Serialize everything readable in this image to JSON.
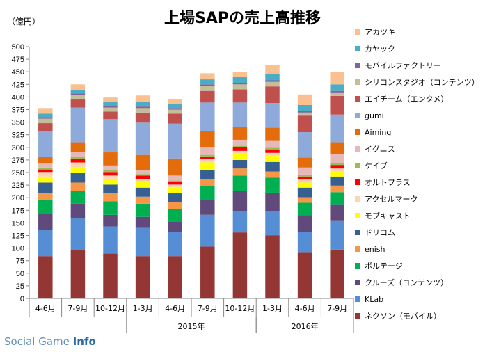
{
  "chart_data": {
    "type": "bar",
    "stacked": true,
    "title": "上場SAPの売上高推移",
    "unit_label": "（億円）",
    "ylim": [
      0,
      500
    ],
    "y_ticks": [
      0,
      25,
      50,
      75,
      100,
      125,
      150,
      175,
      200,
      225,
      250,
      275,
      300,
      325,
      350,
      375,
      400,
      425,
      450,
      475,
      500
    ],
    "categories": [
      "4-6月",
      "7-9月",
      "10-12月",
      "1-3月",
      "4-6月",
      "7-9月",
      "10-12月",
      "1-3月",
      "4-6月",
      "7-9月"
    ],
    "year_groups": [
      {
        "label": "2015年",
        "start": 3,
        "end": 6
      },
      {
        "label": "2016年",
        "start": 7,
        "end": 9
      }
    ],
    "grid": false,
    "legend_position": "right",
    "series": [
      {
        "name": "ネクソン（モバイル）",
        "color": "#943634",
        "values": [
          84,
          96,
          89,
          84,
          84,
          103,
          131,
          125,
          92,
          97
        ]
      },
      {
        "name": "KLab",
        "color": "#558ed5",
        "values": [
          52,
          63,
          54,
          56,
          48,
          63,
          43,
          48,
          40,
          58
        ]
      },
      {
        "name": "クルーズ（コンテンツ）",
        "color": "#604a7b",
        "values": [
          32,
          29,
          23,
          22,
          21,
          30,
          40,
          37,
          33,
          32
        ]
      },
      {
        "name": "ボルテージ",
        "color": "#00b050",
        "values": [
          27,
          26,
          27,
          26,
          25,
          27,
          30,
          30,
          25,
          24
        ]
      },
      {
        "name": "enish",
        "color": "#f79646",
        "values": [
          14,
          16,
          16,
          14,
          14,
          14,
          14,
          12,
          11,
          13
        ]
      },
      {
        "name": "ドリコム",
        "color": "#376092",
        "values": [
          21,
          19,
          17,
          18,
          17,
          18,
          17,
          19,
          19,
          18
        ]
      },
      {
        "name": "モブキャスト",
        "color": "#ffff00",
        "values": [
          12,
          12,
          11,
          11,
          11,
          15,
          11,
          12,
          10,
          10
        ]
      },
      {
        "name": "アクセルマーク",
        "color": "#fcd5b5",
        "values": [
          9,
          9,
          7,
          6,
          6,
          7,
          7,
          6,
          6,
          6
        ]
      },
      {
        "name": "オルトプラス",
        "color": "#ff0000",
        "values": [
          5,
          7,
          7,
          7,
          5,
          5,
          7,
          7,
          6,
          7
        ]
      },
      {
        "name": "ケイブ",
        "color": "#9bbb59",
        "values": [
          4,
          4,
          4,
          3,
          3,
          3,
          3,
          3,
          4,
          4
        ]
      },
      {
        "name": "イグニス",
        "color": "#e6b9b8",
        "values": [
          8,
          10,
          9,
          8,
          10,
          15,
          12,
          15,
          14,
          17
        ]
      },
      {
        "name": "Aiming",
        "color": "#e46c0a",
        "values": [
          13,
          19,
          26,
          30,
          34,
          32,
          26,
          25,
          20,
          24
        ]
      },
      {
        "name": "gumi",
        "color": "#8eaadb",
        "values": [
          51,
          69,
          66,
          64,
          69,
          57,
          48,
          49,
          50,
          55
        ]
      },
      {
        "name": "エイチーム（エンタメ）",
        "color": "#c0504d",
        "values": [
          16,
          16,
          15,
          20,
          20,
          23,
          26,
          33,
          33,
          37
        ]
      },
      {
        "name": "シリコンスタジオ（コンテンツ）",
        "color": "#c4bd97",
        "values": [
          9,
          9,
          8,
          9,
          8,
          10,
          10,
          9,
          6,
          7
        ]
      },
      {
        "name": "モバイルファクトリー",
        "color": "#8064a2",
        "values": [
          3,
          3,
          3,
          3,
          3,
          3,
          3,
          3,
          3,
          3
        ]
      },
      {
        "name": "カヤック",
        "color": "#4bacc6",
        "values": [
          7,
          7,
          8,
          9,
          8,
          10,
          12,
          12,
          12,
          13
        ]
      },
      {
        "name": "アカツキ",
        "color": "#fac090",
        "values": [
          11,
          11,
          9,
          13,
          10,
          12,
          10,
          19,
          21,
          25
        ]
      }
    ]
  },
  "watermark": {
    "part1": "Social Game ",
    "part2": "Info"
  }
}
